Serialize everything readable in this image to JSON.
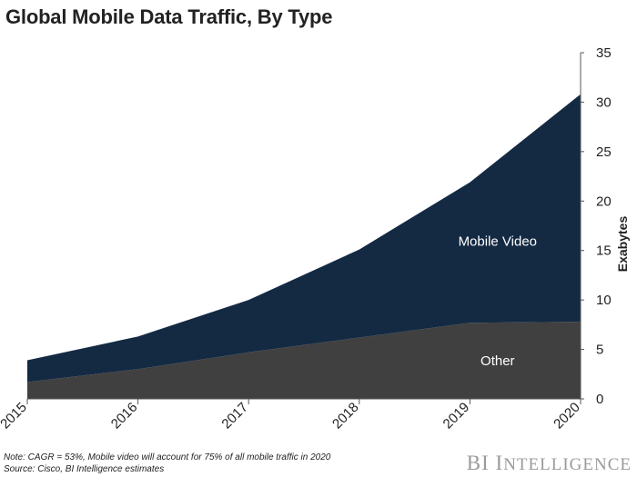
{
  "chart_data": {
    "type": "area",
    "stacked": true,
    "title": "Global Mobile Data Traffic, By Type",
    "x": [
      "2015",
      "2016",
      "2017",
      "2018",
      "2019",
      "2020"
    ],
    "series": [
      {
        "name": "Other",
        "values": [
          1.7,
          3.0,
          4.7,
          6.2,
          7.7,
          7.8
        ],
        "color": "#404040"
      },
      {
        "name": "Mobile Video",
        "values": [
          2.2,
          3.3,
          5.3,
          8.9,
          14.2,
          23.0
        ],
        "color": "#142a43"
      }
    ],
    "ylabel": "Exabytes",
    "ylim": [
      0,
      35
    ],
    "yticks": [
      "0",
      "5",
      "10",
      "15",
      "20",
      "25",
      "30",
      "35"
    ],
    "y_axis_side": "right",
    "grid": false,
    "legend": "inline labels"
  },
  "footer": {
    "note": "Note: CAGR = 53%, Mobile video will account for 75% of all mobile traffic in 2020",
    "source": "Source: Cisco, BI Intelligence estimates",
    "brand_1": "BI I",
    "brand_2": "NTELLIGENCE"
  }
}
